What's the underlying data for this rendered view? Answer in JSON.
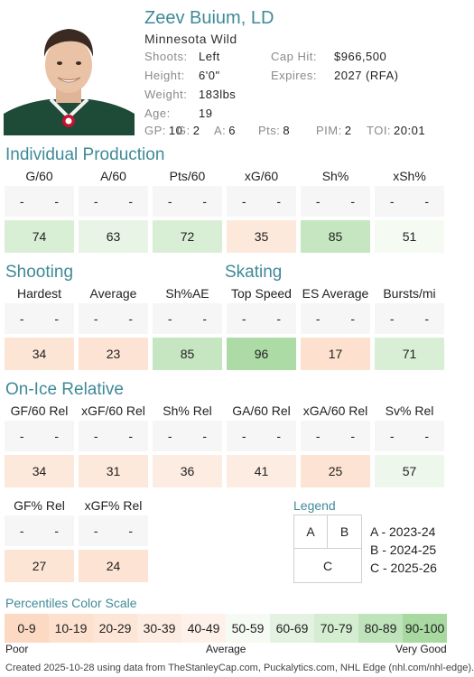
{
  "player": {
    "name": "Zeev Buium, LD",
    "team": "Minnesota Wild",
    "info": [
      {
        "label": "Shoots:",
        "value": "Left",
        "label2": "Cap Hit:",
        "value2": "$966,500"
      },
      {
        "label": "Height:",
        "value": "6'0\"",
        "label2": "Expires:",
        "value2": "2027 (RFA)"
      },
      {
        "label": "Weight:",
        "value": "183lbs",
        "label2": "",
        "value2": ""
      },
      {
        "label": "Age:",
        "value": "19",
        "label2": "",
        "value2": ""
      }
    ],
    "stats": [
      {
        "label": "GP:",
        "value": "10"
      },
      {
        "label": "G:",
        "value": "2"
      },
      {
        "label": "A:",
        "value": "6"
      },
      {
        "label": "Pts:",
        "value": "8"
      },
      {
        "label": "PIM:",
        "value": "2"
      },
      {
        "label": "TOI:",
        "value": "20:01"
      }
    ]
  },
  "sections": {
    "individual": {
      "title": "Individual Production",
      "columns": [
        {
          "head": "G/60",
          "y1": "-",
          "y2": "-",
          "pct": "74",
          "color": "#d9efd5"
        },
        {
          "head": "A/60",
          "y1": "-",
          "y2": "-",
          "pct": "63",
          "color": "#e8f4e5"
        },
        {
          "head": "Pts/60",
          "y1": "-",
          "y2": "-",
          "pct": "72",
          "color": "#d9efd5"
        },
        {
          "head": "xG/60",
          "y1": "-",
          "y2": "-",
          "pct": "35",
          "color": "#fde9dc"
        },
        {
          "head": "Sh%",
          "y1": "-",
          "y2": "-",
          "pct": "85",
          "color": "#c5e6c0"
        },
        {
          "head": "xSh%",
          "y1": "-",
          "y2": "-",
          "pct": "51",
          "color": "#f5faf3"
        }
      ]
    },
    "shooting": {
      "title": "Shooting",
      "columns": [
        {
          "head": "Hardest",
          "y1": "-",
          "y2": "-",
          "pct": "34",
          "color": "#fde5d6"
        },
        {
          "head": "Average",
          "y1": "-",
          "y2": "-",
          "pct": "23",
          "color": "#fde3d3"
        },
        {
          "head": "Sh%AE",
          "y1": "-",
          "y2": "-",
          "pct": "85",
          "color": "#c5e6c0"
        }
      ]
    },
    "skating": {
      "title": "Skating",
      "columns": [
        {
          "head": "Top Speed",
          "y1": "-",
          "y2": "-",
          "pct": "96",
          "color": "#acdba6"
        },
        {
          "head": "ES Average",
          "y1": "-",
          "y2": "-",
          "pct": "17",
          "color": "#fde0cd"
        },
        {
          "head": "Bursts/mi",
          "y1": "-",
          "y2": "-",
          "pct": "71",
          "color": "#d9efd5"
        }
      ]
    },
    "onice": {
      "title": "On-Ice Relative",
      "columns": [
        {
          "head": "GF/60 Rel",
          "y1": "-",
          "y2": "-",
          "pct": "34",
          "color": "#fde9dc"
        },
        {
          "head": "xGF/60 Rel",
          "y1": "-",
          "y2": "-",
          "pct": "31",
          "color": "#fde9dc"
        },
        {
          "head": "Sh% Rel",
          "y1": "-",
          "y2": "-",
          "pct": "36",
          "color": "#fdece1"
        },
        {
          "head": "GA/60 Rel",
          "y1": "-",
          "y2": "-",
          "pct": "41",
          "color": "#fdece1"
        },
        {
          "head": "xGA/60 Rel",
          "y1": "-",
          "y2": "-",
          "pct": "25",
          "color": "#fde3d3"
        },
        {
          "head": "Sv% Rel",
          "y1": "-",
          "y2": "-",
          "pct": "57",
          "color": "#eef7ec"
        }
      ],
      "columns2": [
        {
          "head": "GF% Rel",
          "y1": "-",
          "y2": "-",
          "pct": "27",
          "color": "#fde5d6"
        },
        {
          "head": "xGF% Rel",
          "y1": "-",
          "y2": "-",
          "pct": "24",
          "color": "#fde3d3"
        }
      ]
    }
  },
  "legend": {
    "title": "Legend",
    "a": "A",
    "b": "B",
    "c": "C",
    "items": [
      "A - 2023-24",
      "B - 2024-25",
      "C - 2025-26"
    ]
  },
  "scale": {
    "title": "Percentiles Color Scale",
    "bins": [
      {
        "label": "0-9",
        "color": "#fcd9c2"
      },
      {
        "label": "10-19",
        "color": "#fde0cd"
      },
      {
        "label": "20-29",
        "color": "#fde6d8"
      },
      {
        "label": "30-39",
        "color": "#fdece1"
      },
      {
        "label": "40-49",
        "color": "#fdf1ea"
      },
      {
        "label": "50-59",
        "color": "#f5faf3"
      },
      {
        "label": "60-69",
        "color": "#e4f3e1"
      },
      {
        "label": "70-79",
        "color": "#d5edd1"
      },
      {
        "label": "80-89",
        "color": "#bfe3ba"
      },
      {
        "label": "90-100",
        "color": "#a8d9a1"
      }
    ],
    "poor": "Poor",
    "average": "Average",
    "good": "Very Good"
  },
  "footer": "Created 2025-10-28 using data from TheStanleyCap.com, Puckalytics.com, NHL Edge (nhl.com/nhl-edge)."
}
